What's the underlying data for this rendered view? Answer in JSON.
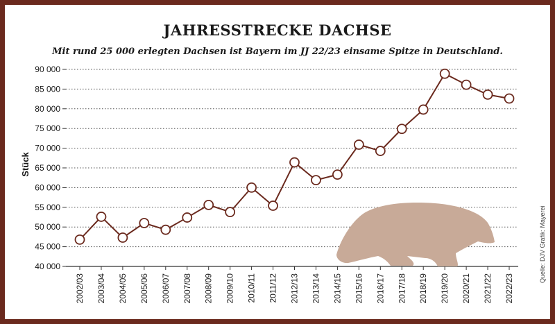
{
  "chart_data": {
    "type": "line",
    "title": "JAHRESSTRECKE DACHSE",
    "subtitle": "Mit rund 25 000 erlegten Dachsen ist Bayern im JJ 22/23 einsame Spitze in Deutschland.",
    "ylabel": "Stück",
    "ylim": [
      40000,
      90000
    ],
    "yticks": [
      40000,
      45000,
      50000,
      55000,
      60000,
      65000,
      70000,
      75000,
      80000,
      85000,
      90000
    ],
    "ytick_labels": [
      "40 000",
      "45 000",
      "50 000",
      "55 000",
      "60 000",
      "65 000",
      "70 000",
      "75 000",
      "80 000",
      "85 000",
      "90 000"
    ],
    "categories": [
      "2002/03",
      "2003/04",
      "2004/05",
      "2005/06",
      "2006/07",
      "2007/08",
      "2008/09",
      "2009/10",
      "2010/11",
      "2011/12",
      "2012/13",
      "2013/14",
      "2014/15",
      "2015/16",
      "2016/17",
      "2017/18",
      "2018/19",
      "2019/20",
      "2020/21",
      "2021/22",
      "2022/23"
    ],
    "values": [
      46800,
      52600,
      47300,
      51000,
      49300,
      52400,
      55600,
      53800,
      60000,
      55400,
      66400,
      61900,
      63300,
      70900,
      69300,
      74900,
      79800,
      88900,
      86100,
      83600,
      82600
    ],
    "grid": "horizontal dotted",
    "colors": {
      "line": "#6b2a1e",
      "marker_fill": "#ffffff",
      "badger": "#c8aa98",
      "frame": "#6b2a1e"
    }
  },
  "source": "Quelle: DJV Grafik: Mayerei"
}
